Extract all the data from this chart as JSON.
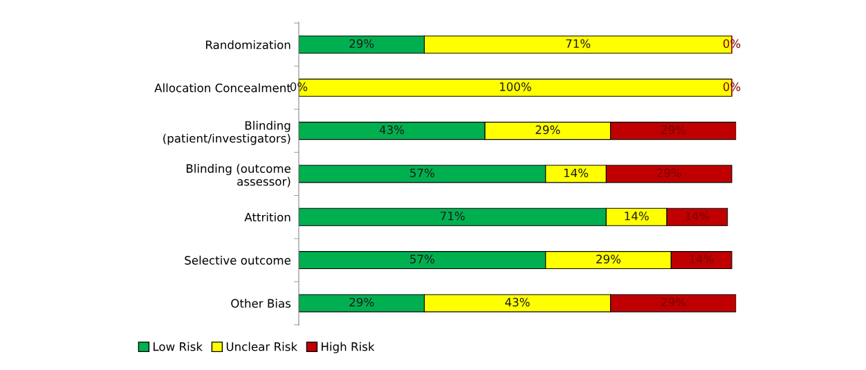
{
  "chart_data": {
    "type": "bar",
    "orientation": "horizontal",
    "stacked": true,
    "categories": [
      "Randomization",
      "Allocation Concealment",
      "Blinding\n(patient/investigators)",
      "Blinding (outcome\nassessor)",
      "Attrition",
      "Selective outcome",
      "Other Bias"
    ],
    "series": [
      {
        "name": "Low Risk",
        "color": "#00b050",
        "values": [
          29,
          0,
          43,
          57,
          71,
          57,
          29
        ],
        "value_labels": [
          "29%",
          "0%",
          "43%",
          "57%",
          "71%",
          "57%",
          "29%"
        ]
      },
      {
        "name": "Unclear Risk",
        "color": "#ffff00",
        "values": [
          71,
          100,
          29,
          14,
          14,
          29,
          43
        ],
        "value_labels": [
          "71%",
          "100%",
          "29%",
          "14%",
          "14%",
          "29%",
          "43%"
        ]
      },
      {
        "name": "High Risk",
        "color": "#c00000",
        "values": [
          0,
          0,
          29,
          29,
          14,
          14,
          29
        ],
        "value_labels": [
          "0%",
          "0%",
          "29%",
          "29%",
          "14%",
          "14%",
          "29%"
        ]
      }
    ],
    "legend": "bottom"
  }
}
